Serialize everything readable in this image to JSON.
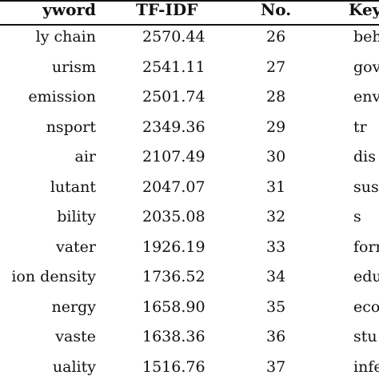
{
  "table": {
    "headers": {
      "keyword": "yword",
      "tfidf": "TF-IDF",
      "no": "No.",
      "keyword2": "Key"
    },
    "rows": [
      {
        "keyword": "ly chain",
        "tfidf": "2570.44",
        "no": "26",
        "keyword2": "beh"
      },
      {
        "keyword": "urism",
        "tfidf": "2541.11",
        "no": "27",
        "keyword2": "gove"
      },
      {
        "keyword": "emission",
        "tfidf": "2501.74",
        "no": "28",
        "keyword2": "envir"
      },
      {
        "keyword": "nsport",
        "tfidf": "2349.36",
        "no": "29",
        "keyword2": "tr"
      },
      {
        "keyword": "air",
        "tfidf": "2107.49",
        "no": "30",
        "keyword2": "dis"
      },
      {
        "keyword": "lutant",
        "tfidf": "2047.07",
        "no": "31",
        "keyword2": "sustai"
      },
      {
        "keyword": "bility",
        "tfidf": "2035.08",
        "no": "32",
        "keyword2": "s"
      },
      {
        "keyword": "vater",
        "tfidf": "1926.19",
        "no": "33",
        "keyword2": "form"
      },
      {
        "keyword": "ion density",
        "tfidf": "1736.52",
        "no": "34",
        "keyword2": "edu"
      },
      {
        "keyword": "nergy",
        "tfidf": "1658.90",
        "no": "35",
        "keyword2": "eco"
      },
      {
        "keyword": "vaste",
        "tfidf": "1638.36",
        "no": "36",
        "keyword2": "stu"
      },
      {
        "keyword": "uality",
        "tfidf": "1516.76",
        "no": "37",
        "keyword2": "infe"
      }
    ]
  }
}
